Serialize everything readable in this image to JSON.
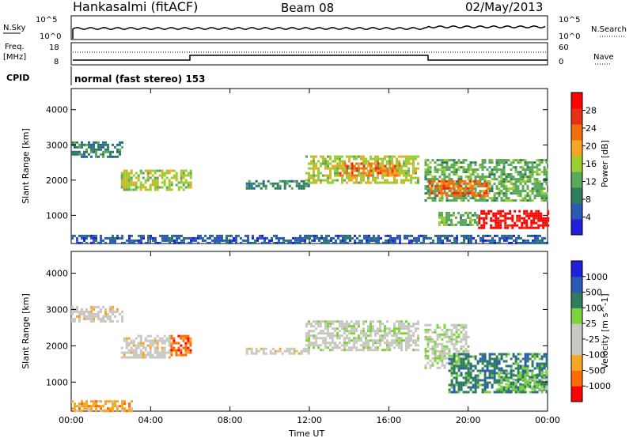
{
  "header": {
    "station": "Hankasalmi (fitACF)",
    "beam": "Beam 08",
    "date": "02/May/2013"
  },
  "noise_panel": {
    "left_label": "N.Sky",
    "right_label": "N.Search",
    "left_ticks": [
      "10^5",
      "10^0"
    ],
    "right_ticks": [
      "10^5",
      "10^0"
    ]
  },
  "freq_panel": {
    "left_label_1": "Freq.",
    "left_label_2": "[MHz]",
    "right_label": "Nave",
    "left_ticks": [
      "18",
      "8"
    ],
    "right_ticks": [
      "60",
      "0"
    ]
  },
  "cpid": {
    "label": "CPID",
    "mode": "normal (fast stereo) 153"
  },
  "colors": {
    "power": [
      "#1f1fdc",
      "#2a5ab4",
      "#2e7d5f",
      "#5aa85a",
      "#9acd32",
      "#f5a623",
      "#f07010",
      "#e83010",
      "#ff0000"
    ],
    "velocity": [
      "#ff0000",
      "#ff6a00",
      "#f5a623",
      "#c8c8c0",
      "#c8c8c0",
      "#7cd23c",
      "#2e7d5f",
      "#2a5ab4",
      "#1f1fdc"
    ]
  },
  "chart_data": [
    {
      "type": "heatmap",
      "title": "Power",
      "xlabel": "",
      "ylabel": "Slant Range [km]",
      "x_ticks": [
        "00:00",
        "04:00",
        "08:00",
        "12:00",
        "16:00",
        "20:00",
        "00:00"
      ],
      "y_ticks": [
        "1000",
        "2000",
        "3000",
        "4000"
      ],
      "ylim": [
        200,
        4600
      ],
      "colorbar": {
        "label": "Power [dB]",
        "ticks": [
          "28",
          "24",
          "20",
          "16",
          "12",
          "8",
          "4"
        ],
        "range": [
          0,
          32
        ]
      },
      "regions": [
        {
          "t0": 0.0,
          "t1": 2.6,
          "r0": 2650,
          "r1": 3100,
          "level": 2
        },
        {
          "t0": 2.5,
          "t1": 6.0,
          "r0": 1700,
          "r1": 2300,
          "level": 4
        },
        {
          "t0": 8.8,
          "t1": 12.0,
          "r0": 1750,
          "r1": 2000,
          "level": 2
        },
        {
          "t0": 11.8,
          "t1": 17.5,
          "r0": 1900,
          "r1": 2700,
          "level": 4
        },
        {
          "t0": 13.5,
          "t1": 16.5,
          "r0": 2100,
          "r1": 2500,
          "level": 6
        },
        {
          "t0": 17.8,
          "t1": 24.0,
          "r0": 1400,
          "r1": 2600,
          "level": 3
        },
        {
          "t0": 18.0,
          "t1": 21.0,
          "r0": 1550,
          "r1": 2000,
          "level": 6
        },
        {
          "t0": 20.5,
          "t1": 24.0,
          "r0": 650,
          "r1": 1150,
          "level": 8
        },
        {
          "t0": 18.5,
          "t1": 20.5,
          "r0": 700,
          "r1": 1100,
          "level": 3
        },
        {
          "t0": 0.0,
          "t1": 24.0,
          "r0": 220,
          "r1": 450,
          "level": 1
        }
      ]
    },
    {
      "type": "heatmap",
      "title": "Velocity",
      "xlabel": "Time UT",
      "ylabel": "Slant Range [km]",
      "x_ticks": [
        "00:00",
        "04:00",
        "08:00",
        "12:00",
        "16:00",
        "20:00",
        "00:00"
      ],
      "y_ticks": [
        "1000",
        "2000",
        "3000",
        "4000"
      ],
      "ylim": [
        200,
        4600
      ],
      "colorbar": {
        "label": "Velocity [m s^-1]",
        "ticks": [
          "1000",
          "500",
          "100",
          "25",
          "-25",
          "-100",
          "-500",
          "-1000"
        ],
        "range": [
          -1250,
          1250
        ]
      },
      "regions": [
        {
          "t0": 0.0,
          "t1": 2.6,
          "r0": 2650,
          "r1": 3100,
          "level": 3
        },
        {
          "t0": 2.5,
          "t1": 5.0,
          "r0": 1700,
          "r1": 2300,
          "level": 3
        },
        {
          "t0": 5.0,
          "t1": 6.0,
          "r0": 1750,
          "r1": 2300,
          "level": 1
        },
        {
          "t0": 8.8,
          "t1": 12.0,
          "r0": 1780,
          "r1": 1950,
          "level": 3
        },
        {
          "t0": 11.8,
          "t1": 17.5,
          "r0": 1900,
          "r1": 2700,
          "level": 4
        },
        {
          "t0": 17.8,
          "t1": 20.0,
          "r0": 1400,
          "r1": 2600,
          "level": 4
        },
        {
          "t0": 19.0,
          "t1": 24.0,
          "r0": 700,
          "r1": 1800,
          "level": 6
        },
        {
          "t0": 21.5,
          "t1": 24.0,
          "r0": 800,
          "r1": 1300,
          "level": 5
        },
        {
          "t0": 0.0,
          "t1": 3.0,
          "r0": 220,
          "r1": 500,
          "level": 2
        }
      ]
    }
  ]
}
